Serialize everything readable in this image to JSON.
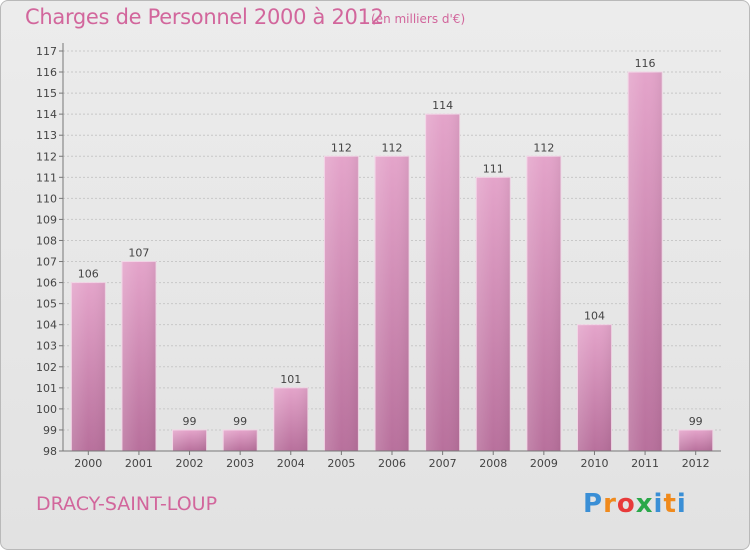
{
  "header": {
    "title": "Charges de Personnel 2000 à 2012",
    "unit": "(en milliers d'€)"
  },
  "footer": {
    "place": "DRACY-SAINT-LOUP",
    "brand_letters": [
      "P",
      "r",
      "o",
      "x",
      "i",
      "t",
      "i"
    ],
    "brand_colors": [
      "#3a8fd6",
      "#f08a1c",
      "#e83a3a",
      "#2aa84a",
      "#3a8fd6",
      "#f08a1c",
      "#3a8fd6"
    ]
  },
  "chart_data": {
    "type": "bar",
    "categories": [
      "2000",
      "2001",
      "2002",
      "2003",
      "2004",
      "2005",
      "2006",
      "2007",
      "2008",
      "2009",
      "2010",
      "2011",
      "2012"
    ],
    "values": [
      106,
      107,
      99,
      99,
      101,
      112,
      112,
      114,
      111,
      112,
      104,
      116,
      99
    ],
    "data_labels": [
      "106",
      "107",
      "99",
      "99",
      "101",
      "112",
      "112",
      "114",
      "111",
      "112",
      "104",
      "116",
      "99"
    ],
    "y_ticks": [
      98,
      99,
      100,
      101,
      102,
      103,
      104,
      105,
      106,
      107,
      108,
      109,
      110,
      111,
      112,
      113,
      114,
      115,
      116,
      117
    ],
    "ylim": [
      98,
      117
    ],
    "grid": true,
    "bar_color": "#d98bb8"
  }
}
